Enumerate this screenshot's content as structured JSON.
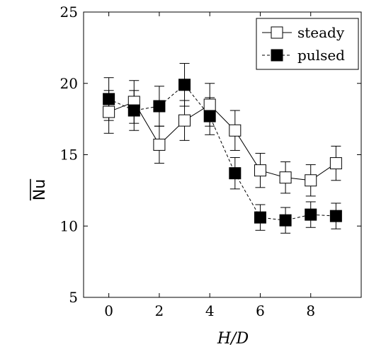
{
  "chart_data": {
    "type": "line",
    "xlabel": "H/D",
    "ylabel": "Nu",
    "xlim": [
      -1,
      10
    ],
    "ylim": [
      5,
      25
    ],
    "xticks": [
      0,
      2,
      4,
      6,
      8
    ],
    "yticks": [
      5,
      10,
      15,
      20,
      25
    ],
    "grid": false,
    "legend_position": "top-right",
    "x": [
      0,
      1,
      2,
      3,
      4,
      5,
      6,
      7,
      8,
      9
    ],
    "series": [
      {
        "name": "steady",
        "style": "solid",
        "marker": "open-square",
        "values": [
          18.0,
          18.7,
          15.7,
          17.4,
          18.5,
          16.7,
          13.9,
          13.4,
          13.2,
          14.4
        ],
        "error": [
          1.5,
          1.5,
          1.3,
          1.4,
          1.5,
          1.4,
          1.2,
          1.1,
          1.1,
          1.2
        ]
      },
      {
        "name": "pulsed",
        "style": "dashed",
        "marker": "filled-square",
        "values": [
          18.9,
          18.1,
          18.4,
          19.9,
          17.7,
          13.7,
          10.6,
          10.4,
          10.8,
          10.7
        ],
        "error": [
          1.5,
          1.4,
          1.4,
          1.5,
          1.3,
          1.1,
          0.9,
          0.9,
          0.9,
          0.9
        ]
      }
    ]
  }
}
